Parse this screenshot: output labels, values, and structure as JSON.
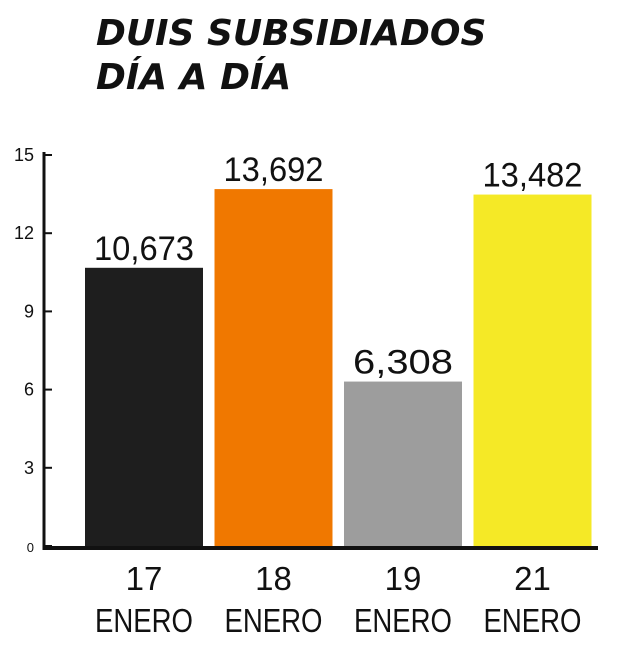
{
  "chart_data": {
    "type": "bar",
    "title_lines": [
      "DUIS SUBSIDIADOS",
      "DÍA A DÍA"
    ],
    "categories": [
      {
        "line1": "17",
        "line2": "ENERO"
      },
      {
        "line1": "18",
        "line2": "ENERO"
      },
      {
        "line1": "19",
        "line2": "ENERO"
      },
      {
        "line1": "21",
        "line2": "ENERO"
      }
    ],
    "values": [
      10.673,
      13.692,
      6.308,
      13.482
    ],
    "value_labels": [
      "10,673",
      "13,692",
      "6,308",
      "13,482"
    ],
    "colors": [
      "#1e1e1e",
      "#f07800",
      "#9d9d9d",
      "#f5e926"
    ],
    "yticks": [
      "0",
      "3",
      "6",
      "9",
      "12",
      "15"
    ],
    "ylim": [
      0,
      15
    ],
    "grid": false,
    "legend": "none"
  }
}
